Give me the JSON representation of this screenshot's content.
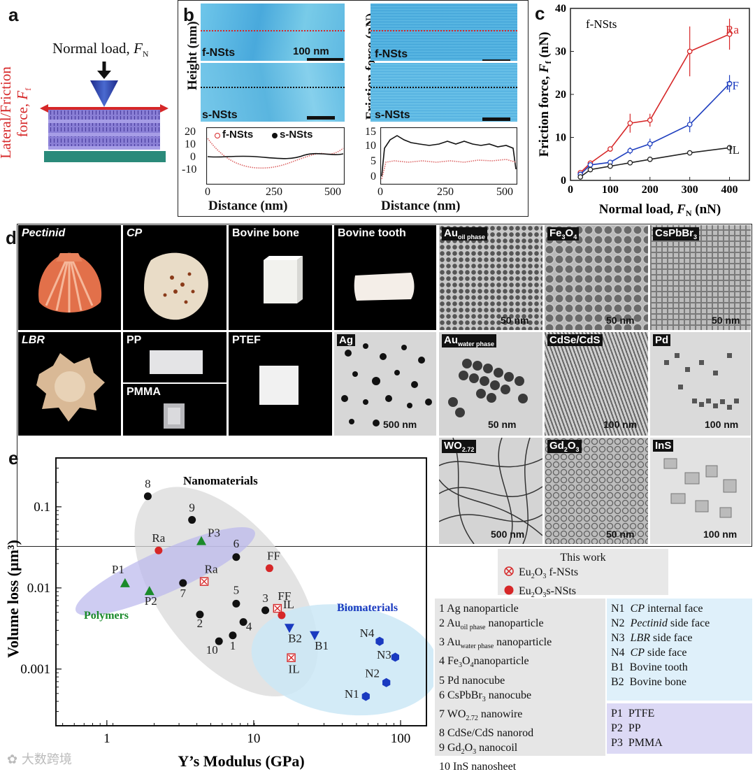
{
  "panels": {
    "a": "a",
    "b": "b",
    "c": "c",
    "d": "d",
    "e": "e"
  },
  "panel_a": {
    "normal_load": "Normal load, ",
    "normal_load_sym": "F",
    "normal_load_sub": "N",
    "lateral": "Lateral/Friction",
    "lateral2": "force, ",
    "lateral_sym": "F",
    "lateral_sub": "f"
  },
  "panel_b": {
    "height_axis": "Height (nm)",
    "friction_axis": "Friction force (nN)",
    "f_label": "f-NSts",
    "s_label": "s-NSts",
    "scale_text": "100 nm",
    "legend_f": "f-NSts",
    "legend_s": "s-NSts",
    "xlabel": "Distance (nm)",
    "height_ticks": [
      "20",
      "10",
      "0",
      "-10"
    ],
    "friction_ticks": [
      "15",
      "10",
      "5",
      "0"
    ],
    "x_ticks": [
      "0",
      "250",
      "500"
    ]
  },
  "chart_data": [
    {
      "type": "line",
      "title": "f-NSts",
      "xlabel": "Normal load, F_N (nN)",
      "ylabel": "Friction force, F_f (nN)",
      "xlim": [
        0,
        450
      ],
      "ylim": [
        0,
        40
      ],
      "x_ticks": [
        "0",
        "100",
        "200",
        "300",
        "400"
      ],
      "y_ticks": [
        "0",
        "10",
        "20",
        "30",
        "40"
      ],
      "series": [
        {
          "name": "Ra",
          "color": "#d62728",
          "x": [
            25,
            50,
            100,
            150,
            200,
            300,
            400
          ],
          "y": [
            1.8,
            4.0,
            7.3,
            13.3,
            14.0,
            30.0,
            34.0
          ],
          "err": [
            0.3,
            0.5,
            0.6,
            2.2,
            1.5,
            5.8,
            3.6
          ]
        },
        {
          "name": "FF",
          "color": "#1f3fbf",
          "x": [
            25,
            50,
            100,
            150,
            200,
            300,
            400
          ],
          "y": [
            1.4,
            3.6,
            4.2,
            6.9,
            8.5,
            13.0,
            22.5
          ],
          "err": [
            0.3,
            0.5,
            0.5,
            0.8,
            1.2,
            1.8,
            2.0
          ]
        },
        {
          "name": "IL",
          "color": "#222222",
          "x": [
            25,
            50,
            100,
            150,
            200,
            300,
            400
          ],
          "y": [
            0.8,
            2.5,
            3.3,
            4.1,
            4.9,
            6.4,
            7.6
          ],
          "err": [
            0.2,
            0.2,
            0.2,
            0.3,
            0.3,
            0.3,
            0.3
          ]
        }
      ]
    },
    {
      "type": "scatter",
      "xlabel": "Y’s Modulus (GPa)",
      "ylabel": "Volume loss (µm³)",
      "xscale": "log",
      "yscale": "log",
      "xlim": [
        0.45,
        150
      ],
      "ylim": [
        0.0002,
        0.4
      ],
      "x_ticks": [
        "1",
        "10",
        "100"
      ],
      "y_ticks": [
        "0.001",
        "0.01",
        "0.1"
      ],
      "region_labels": {
        "nano": "Nanomaterials",
        "poly": "Polymers",
        "bio": "Biomaterials"
      },
      "groups": [
        {
          "name": "Nanomaterials",
          "color": "#111111",
          "marker": "circle",
          "points": [
            {
              "label": "1",
              "x": 7.2,
              "y": 0.0026
            },
            {
              "label": "2",
              "x": 4.3,
              "y": 0.0047
            },
            {
              "label": "3",
              "x": 12.0,
              "y": 0.0053
            },
            {
              "label": "4",
              "x": 8.5,
              "y": 0.0038
            },
            {
              "label": "5",
              "x": 7.6,
              "y": 0.0064
            },
            {
              "label": "6",
              "x": 7.6,
              "y": 0.024
            },
            {
              "label": "7",
              "x": 3.3,
              "y": 0.0115
            },
            {
              "label": "8",
              "x": 1.9,
              "y": 0.135
            },
            {
              "label": "9",
              "x": 3.8,
              "y": 0.069
            },
            {
              "label": "10",
              "x": 5.8,
              "y": 0.0022
            }
          ]
        },
        {
          "name": "Polymers",
          "color": "#1a8a2a",
          "marker": "triangle",
          "points": [
            {
              "label": "P1",
              "x": 1.33,
              "y": 0.0115
            },
            {
              "label": "P2",
              "x": 1.95,
              "y": 0.0092
            },
            {
              "label": "P3",
              "x": 4.4,
              "y": 0.038
            }
          ]
        },
        {
          "name": "Biomaterials",
          "color": "#1a3ac0",
          "marker": "hexagon",
          "points": [
            {
              "label": "N1",
              "x": 58,
              "y": 0.00046
            },
            {
              "label": "N2",
              "x": 80,
              "y": 0.00068
            },
            {
              "label": "N3",
              "x": 92,
              "y": 0.0014
            },
            {
              "label": "N4",
              "x": 72,
              "y": 0.0022
            }
          ]
        },
        {
          "name": "Bovine",
          "color": "#1a3ac0",
          "marker": "triangle-down",
          "points": [
            {
              "label": "B1",
              "x": 26,
              "y": 0.0026
            },
            {
              "label": "B2",
              "x": 17.5,
              "y": 0.0032
            }
          ]
        },
        {
          "name": "Eu2O3 f-NSts",
          "color": "#d62728",
          "marker": "circle-x",
          "points": [
            {
              "label": "Ra",
              "x": 4.6,
              "y": 0.012
            },
            {
              "label": "FF",
              "x": 14.5,
              "y": 0.0056
            },
            {
              "label": "IL",
              "x": 18,
              "y": 0.00138
            }
          ]
        },
        {
          "name": "Eu2O3 s-NSts",
          "color": "#d62728",
          "marker": "circle",
          "points": [
            {
              "label": "Ra",
              "x": 2.25,
              "y": 0.029
            },
            {
              "label": "FF",
              "x": 12.8,
              "y": 0.0175
            },
            {
              "label": "IL",
              "x": 15.5,
              "y": 0.0046
            }
          ]
        }
      ]
    }
  ],
  "panel_d": {
    "tiles": [
      {
        "label": "Pectinid",
        "italic": true
      },
      {
        "label": "CP",
        "italic": true
      },
      {
        "label": "Bovine bone",
        "italic": false
      },
      {
        "label": "Bovine tooth",
        "italic": false
      },
      {
        "label": "LBR",
        "italic": true
      },
      {
        "label": "PP",
        "italic": false
      },
      {
        "label": "PMMA",
        "italic": false
      },
      {
        "label": "PTEF",
        "italic": false
      }
    ],
    "tem": [
      {
        "label": "Au",
        "sub": "oil phase",
        "scale": "50 nm"
      },
      {
        "label": "Fe",
        "sub": "3",
        "label2": "O",
        "sub2": "4",
        "scale": "50 nm"
      },
      {
        "label": "CsPbBr",
        "sub": "3",
        "scale": "50 nm"
      },
      {
        "label": "Ag",
        "sub": "",
        "scale": "500 nm"
      },
      {
        "label": "Au",
        "sub": "water phase",
        "scale": "50 nm"
      },
      {
        "label": "CdSe/CdS",
        "sub": "",
        "scale": "100 nm"
      },
      {
        "label": "Pd",
        "sub": "",
        "scale": "100 nm"
      },
      {
        "label": "WO",
        "sub": "2.72",
        "scale": "500 nm"
      },
      {
        "label": "Gd",
        "sub": "2",
        "label2": "O",
        "sub2": "3",
        "scale": "50 nm"
      },
      {
        "label": "InS",
        "sub": "",
        "scale": "100 nm"
      }
    ]
  },
  "legend": {
    "this_work": "This work",
    "f_nsts_pre": "Eu",
    "f_nsts_mid": "O",
    "f_nsts_post": " f-NSts",
    "s_nsts_post": "s-NSts",
    "numbered": [
      "1  Ag nanoparticle",
      "2  Au",
      "3  Au",
      "4  Fe",
      "5  Pd nanocube",
      "6  CsPbBr",
      "7  WO",
      "8  CdSe/CdS nanorod",
      "9  Gd",
      "10  InS nanosheet"
    ],
    "numbered_suffix": {
      "2": "oil phase",
      "2b": " nanoparticle",
      "3": "water phase",
      "3b": " nanoparticle",
      "4": "3",
      "4m": "O",
      "4s": "4",
      "4b": "nanoparticle",
      "6": "3",
      "6b": " nanocube",
      "7": "2.72",
      "7b": " nanowire",
      "9": "2",
      "9m": "O",
      "9s": "3",
      "9b": " nanocoil"
    },
    "bio": [
      {
        "code": "N1",
        "italic": "CP",
        "rest": " internal face"
      },
      {
        "code": "N2",
        "italic": "Pectinid",
        "rest": " side face"
      },
      {
        "code": "N3",
        "italic": "LBR",
        "rest": " side face"
      },
      {
        "code": "N4",
        "italic": "CP",
        "rest": " side face"
      },
      {
        "code": "B1",
        "italic": "",
        "rest": "Bovine tooth"
      },
      {
        "code": "B2",
        "italic": "",
        "rest": "Bovine bone"
      }
    ],
    "poly": [
      {
        "code": "P1",
        "rest": "PTFE"
      },
      {
        "code": "P2",
        "rest": "PP"
      },
      {
        "code": "P3",
        "rest": "PMMA"
      }
    ]
  },
  "watermark": "大数跨境"
}
